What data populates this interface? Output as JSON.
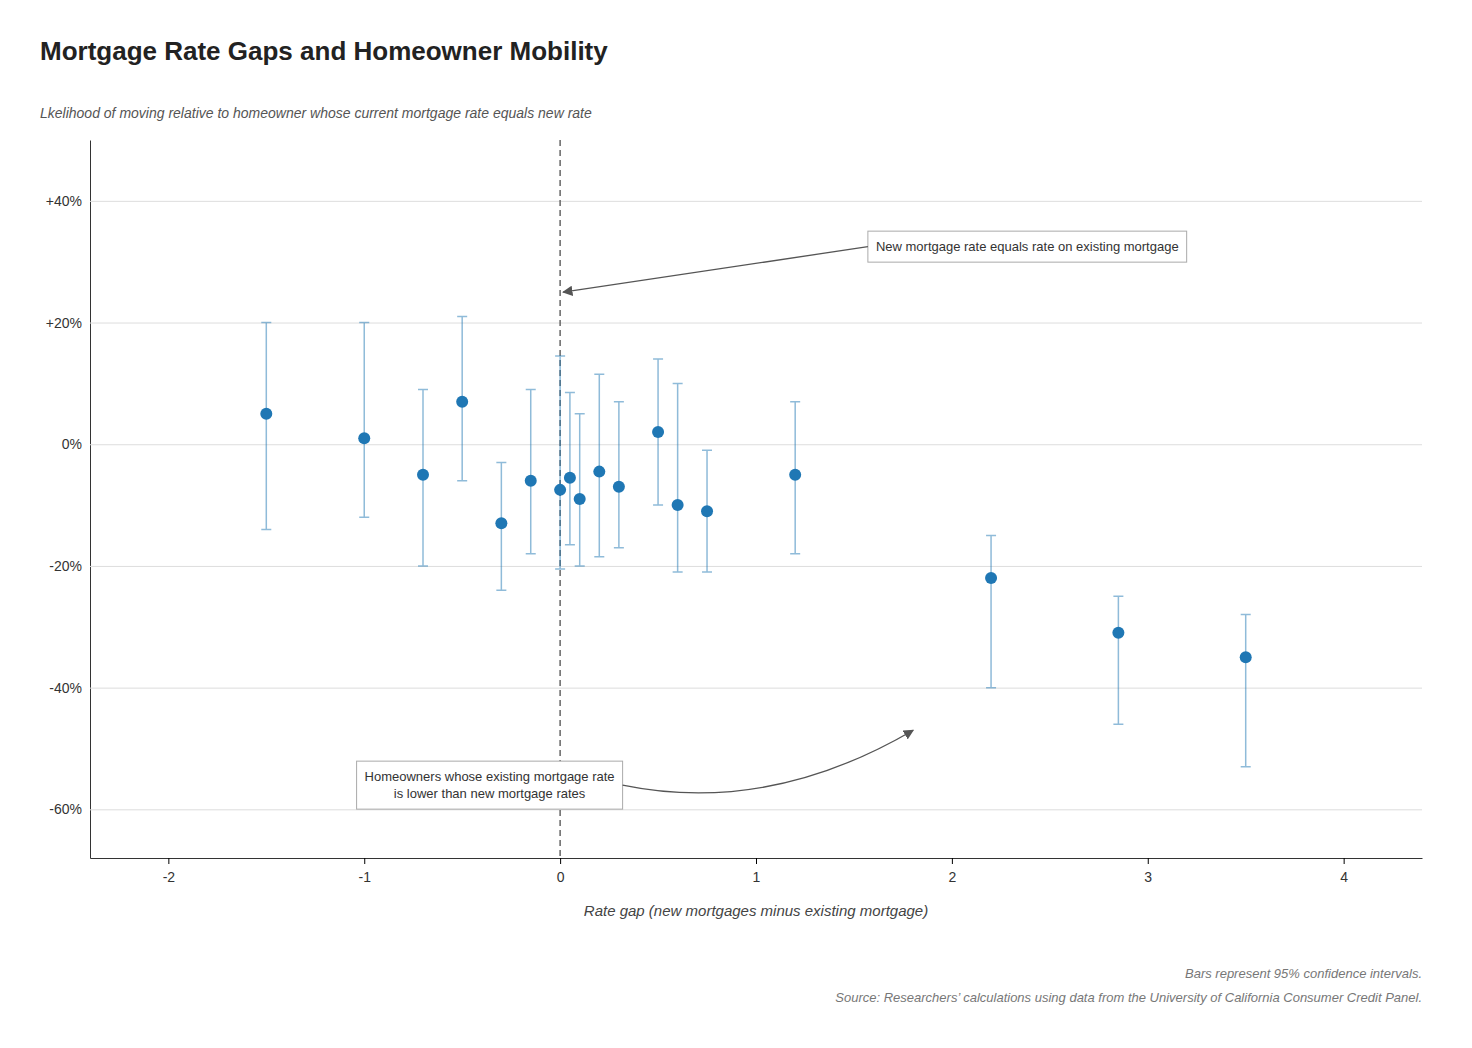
{
  "chart_data": {
    "type": "scatter",
    "title": "Mortgage Rate Gaps and Homeowner Mobility",
    "ylabel": "Lkelihood of moving relative to homeowner whose current mortgage rate equals new rate",
    "xlabel": "Rate gap (new mortgages minus existing mortgage)",
    "annotations": [
      [
        "New mortgage rate equals rate on existing mortgage"
      ],
      [
        "Homeowners whose existing mortgage rate",
        "is lower than new mortgage rates"
      ]
    ],
    "footnotes": [
      "Bars represent 95% confidence intervals.",
      "Source: Researchers’ calculations using data from the University of California Consumer Credit Panel."
    ],
    "x": [
      -1.5,
      -1.0,
      -0.7,
      -0.5,
      -0.3,
      -0.15,
      0.0,
      0.05,
      0.1,
      0.2,
      0.3,
      0.5,
      0.6,
      0.75,
      1.2,
      2.2,
      2.85,
      3.5
    ],
    "values": [
      5.0,
      1.0,
      -5.0,
      7.0,
      -13.0,
      -6.0,
      -7.5,
      -5.5,
      -9.0,
      -4.5,
      -7.0,
      2.0,
      -10.0,
      -11.0,
      -5.0,
      -22.0,
      -31.0,
      -35.0
    ],
    "error_low": [
      19.0,
      13.0,
      15.0,
      13.0,
      11.0,
      12.0,
      13.0,
      11.0,
      11.0,
      14.0,
      10.0,
      12.0,
      11.0,
      10.0,
      13.0,
      18.0,
      15.0,
      18.0
    ],
    "error_high": [
      15.0,
      19.0,
      14.0,
      14.0,
      10.0,
      15.0,
      22.0,
      14.0,
      14.0,
      16.0,
      14.0,
      12.0,
      20.0,
      10.0,
      12.0,
      7.0,
      6.0,
      7.0
    ],
    "vline_x": 0,
    "xlim": [
      -2.4,
      4.4
    ],
    "ylim": [
      -68,
      50
    ],
    "xticks": [
      -2,
      -1,
      0,
      1,
      2,
      3,
      4
    ],
    "yticks": [
      {
        "value": 40,
        "label": "+40%"
      },
      {
        "value": 20,
        "label": "+20%"
      },
      {
        "value": 0,
        "label": "0%"
      },
      {
        "value": -20,
        "label": "-20%"
      },
      {
        "value": -40,
        "label": "-40%"
      },
      {
        "value": -60,
        "label": "-60%"
      }
    ],
    "grid": true
  }
}
